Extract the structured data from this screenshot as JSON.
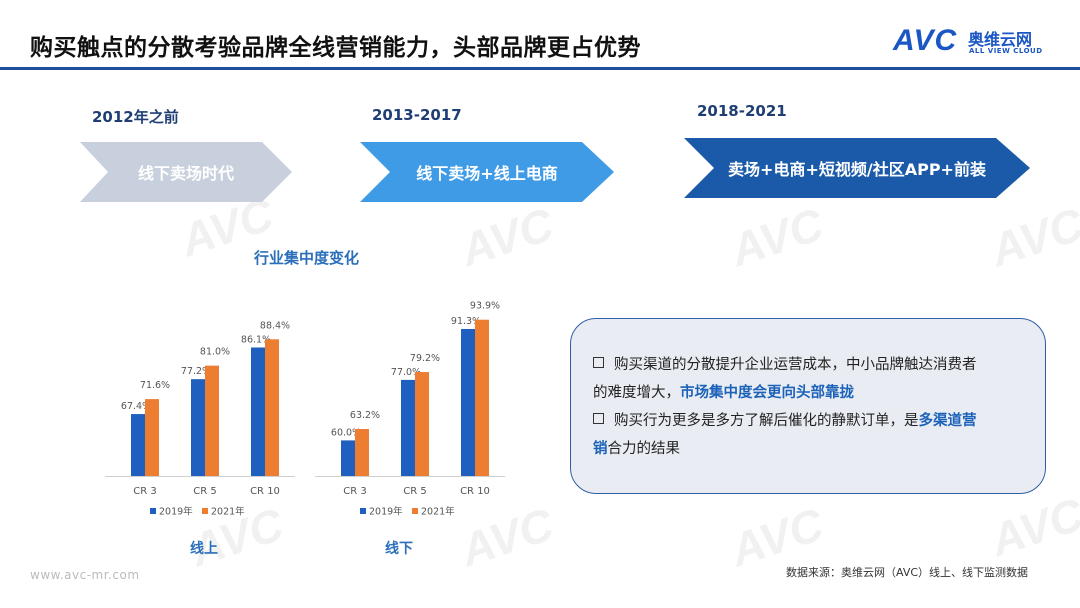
{
  "title": "购买触点的分散考验品牌全线营销能力，头部品牌更占优势",
  "logo": {
    "mark": "AVC",
    "cn": "奥维云网",
    "en": "ALL VIEW CLOUD"
  },
  "eras": [
    {
      "label": "2012年之前",
      "text": "线下卖场时代",
      "color": "#c7d0dc"
    },
    {
      "label": "2013-2017",
      "text": "线下卖场+线上电商",
      "color": "#3f9be6"
    },
    {
      "label": "2018-2021",
      "text": "卖场+电商+短视频/社区APP+前装",
      "color": "#1b5aa8"
    }
  ],
  "chart_heading": "行业集中度变化",
  "chart_data": [
    {
      "type": "bar",
      "caption": "线上",
      "categories": [
        "CR 3",
        "CR 5",
        "CR 10"
      ],
      "series": [
        {
          "name": "2019年",
          "color": "#1f5fbf",
          "values": [
            67.4,
            77.2,
            86.1
          ]
        },
        {
          "name": "2021年",
          "color": "#ed7d31",
          "values": [
            71.6,
            81.0,
            88.4
          ]
        }
      ],
      "value_labels": [
        [
          "67.4%",
          "77.2%",
          "86.1%"
        ],
        [
          "71.6%",
          "81.0%",
          "88.4%"
        ]
      ],
      "ylim": [
        50,
        100
      ],
      "legend_position": "bottom"
    },
    {
      "type": "bar",
      "caption": "线下",
      "categories": [
        "CR 3",
        "CR 5",
        "CR 10"
      ],
      "series": [
        {
          "name": "2019年",
          "color": "#1f5fbf",
          "values": [
            60.0,
            77.0,
            91.3
          ]
        },
        {
          "name": "2021年",
          "color": "#ed7d31",
          "values": [
            63.2,
            79.2,
            93.9
          ]
        }
      ],
      "value_labels": [
        [
          "60.0%",
          "77.0%",
          "91.3%"
        ],
        [
          "63.2%",
          "79.2%",
          "93.9%"
        ]
      ],
      "ylim": [
        50,
        100
      ],
      "legend_position": "bottom"
    }
  ],
  "callout": {
    "bullet1_a": "购买渠道的分散提升企业运营成本，中小品牌触达消费者",
    "bullet1_b": "的难度增大，",
    "bullet1_hl": "市场集中度会更向头部靠拢",
    "bullet2_a": "购买行为更多是多方了解后催化的静默订单，是",
    "bullet2_hl1": "多渠道营",
    "bullet2_hl2": "销",
    "bullet2_b": "合力的结果"
  },
  "footer_url": "www.avc-mr.com",
  "source": "数据来源：奥维云网（AVC）线上、线下监测数据"
}
